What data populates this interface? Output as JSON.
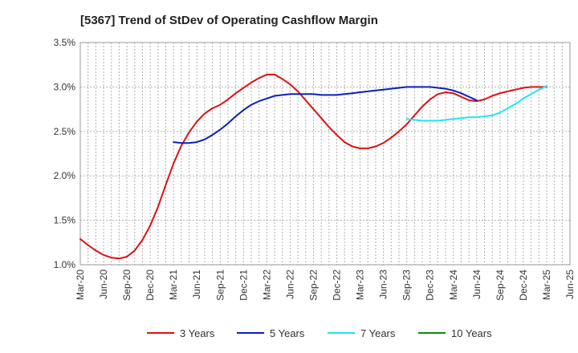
{
  "chart_data": {
    "type": "line",
    "title": "[5367]  Trend of StDev of Operating Cashflow Margin",
    "xlabel": "",
    "ylabel": "",
    "ylim": [
      1.0,
      3.5
    ],
    "y_ticks": [
      "1.0%",
      "1.5%",
      "2.0%",
      "2.5%",
      "3.0%",
      "3.5%"
    ],
    "x_ticks": [
      "Mar-20",
      "Jun-20",
      "Sep-20",
      "Dec-20",
      "Mar-21",
      "Jun-21",
      "Sep-21",
      "Dec-21",
      "Mar-22",
      "Jun-22",
      "Sep-22",
      "Dec-22",
      "Mar-23",
      "Jun-23",
      "Sep-23",
      "Dec-23",
      "Mar-24",
      "Jun-24",
      "Sep-24",
      "Dec-24",
      "Mar-25",
      "Jun-25"
    ],
    "grid": true,
    "legend_position": "bottom",
    "series": [
      {
        "name": "3 Years",
        "color": "#dd1111",
        "x": [
          "Mar-20",
          "Apr-20",
          "May-20",
          "Jun-20",
          "Jul-20",
          "Aug-20",
          "Sep-20",
          "Oct-20",
          "Nov-20",
          "Dec-20",
          "Jan-21",
          "Feb-21",
          "Mar-21",
          "Apr-21",
          "May-21",
          "Jun-21",
          "Jul-21",
          "Aug-21",
          "Sep-21",
          "Oct-21",
          "Nov-21",
          "Dec-21",
          "Jan-22",
          "Feb-22",
          "Mar-22",
          "Apr-22",
          "May-22",
          "Jun-22",
          "Jul-22",
          "Aug-22",
          "Sep-22",
          "Oct-22",
          "Nov-22",
          "Dec-22",
          "Jan-23",
          "Feb-23",
          "Mar-23",
          "Apr-23",
          "May-23",
          "Jun-23",
          "Jul-23",
          "Aug-23",
          "Sep-23",
          "Oct-23",
          "Nov-23",
          "Dec-23",
          "Jan-24",
          "Feb-24",
          "Mar-24",
          "Apr-24",
          "May-24",
          "Jun-24",
          "Jul-24",
          "Aug-24",
          "Sep-24",
          "Oct-24",
          "Nov-24",
          "Dec-24",
          "Jan-25",
          "Feb-25",
          "Mar-25"
        ],
        "values": [
          1.29,
          1.22,
          1.16,
          1.11,
          1.08,
          1.07,
          1.09,
          1.16,
          1.28,
          1.44,
          1.65,
          1.9,
          2.14,
          2.34,
          2.49,
          2.61,
          2.7,
          2.76,
          2.8,
          2.86,
          2.93,
          2.99,
          3.05,
          3.1,
          3.14,
          3.14,
          3.09,
          3.03,
          2.95,
          2.85,
          2.75,
          2.65,
          2.55,
          2.46,
          2.38,
          2.33,
          2.31,
          2.31,
          2.33,
          2.37,
          2.43,
          2.5,
          2.58,
          2.68,
          2.78,
          2.86,
          2.92,
          2.94,
          2.93,
          2.89,
          2.85,
          2.84,
          2.86,
          2.9,
          2.93,
          2.95,
          2.97,
          2.99,
          3.0,
          3.0,
          3.0
        ]
      },
      {
        "name": "5 Years",
        "color": "#0a1fbf",
        "x": [
          "Mar-21",
          "Apr-21",
          "May-21",
          "Jun-21",
          "Jul-21",
          "Aug-21",
          "Sep-21",
          "Oct-21",
          "Nov-21",
          "Dec-21",
          "Jan-22",
          "Feb-22",
          "Mar-22",
          "Apr-22",
          "May-22",
          "Jun-22",
          "Jul-22",
          "Aug-22",
          "Sep-22",
          "Oct-22",
          "Nov-22",
          "Dec-22",
          "Jan-23",
          "Feb-23",
          "Mar-23",
          "Apr-23",
          "May-23",
          "Jun-23",
          "Jul-23",
          "Aug-23",
          "Sep-23",
          "Oct-23",
          "Nov-23",
          "Dec-23",
          "Jan-24",
          "Feb-24",
          "Mar-24",
          "Apr-24",
          "May-24",
          "Jun-24"
        ],
        "values": [
          2.38,
          2.37,
          2.37,
          2.38,
          2.41,
          2.46,
          2.52,
          2.59,
          2.67,
          2.74,
          2.8,
          2.84,
          2.87,
          2.9,
          2.91,
          2.92,
          2.92,
          2.92,
          2.92,
          2.91,
          2.91,
          2.91,
          2.92,
          2.93,
          2.94,
          2.95,
          2.96,
          2.97,
          2.98,
          2.99,
          3.0,
          3.0,
          3.0,
          3.0,
          2.99,
          2.98,
          2.96,
          2.93,
          2.89,
          2.85
        ]
      },
      {
        "name": "7 Years",
        "color": "#22e6ee",
        "x": [
          "Sep-23",
          "Oct-23",
          "Nov-23",
          "Dec-23",
          "Jan-24",
          "Feb-24",
          "Mar-24",
          "Apr-24",
          "May-24",
          "Jun-24",
          "Jul-24",
          "Aug-24",
          "Sep-24",
          "Oct-24",
          "Nov-24",
          "Dec-24",
          "Jan-25",
          "Feb-25",
          "Mar-25"
        ],
        "values": [
          2.64,
          2.63,
          2.62,
          2.62,
          2.62,
          2.63,
          2.64,
          2.65,
          2.66,
          2.66,
          2.67,
          2.68,
          2.71,
          2.76,
          2.81,
          2.87,
          2.92,
          2.97,
          3.01
        ]
      },
      {
        "name": "10 Years",
        "color": "#118811",
        "x": [],
        "values": []
      }
    ]
  }
}
